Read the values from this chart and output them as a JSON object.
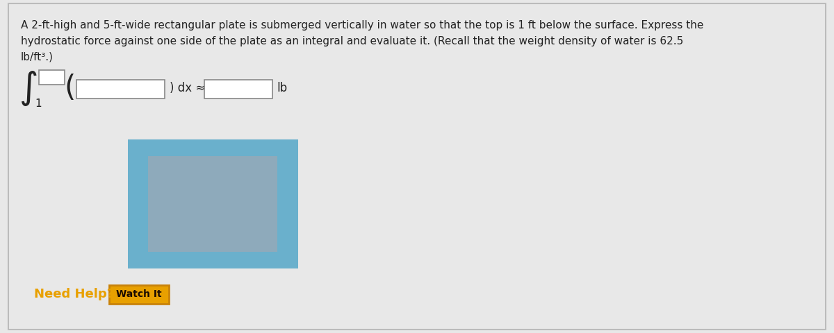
{
  "bg_color": "#e8e8e8",
  "panel_bg": "#ffffff",
  "text_line1": "A 2-ft-high and 5-ft-wide rectangular plate is submerged vertically in water so that the top is 1 ft below the surface. Express the",
  "text_line2": "hydrostatic force against one side of the plate as an integral and evaluate it. (Recall that the weight density of water is 62.5",
  "text_line3": "lb/ft³.)",
  "integral_lower": "1",
  "integral_symbol": "∫",
  "dx_text": ") dx ≈",
  "lb_text": "lb",
  "need_help_text": "Need Help?",
  "watch_it_text": "Watch It",
  "need_help_color": "#e8a000",
  "watch_it_bg": "#e8a000",
  "watch_it_border": "#c8820a",
  "water_outer_color": "#6ab0cc",
  "water_inner_color": "#8eaabb",
  "panel_border_color": "#bbbbbb",
  "text_color": "#222222",
  "box_edge_color": "#888888"
}
